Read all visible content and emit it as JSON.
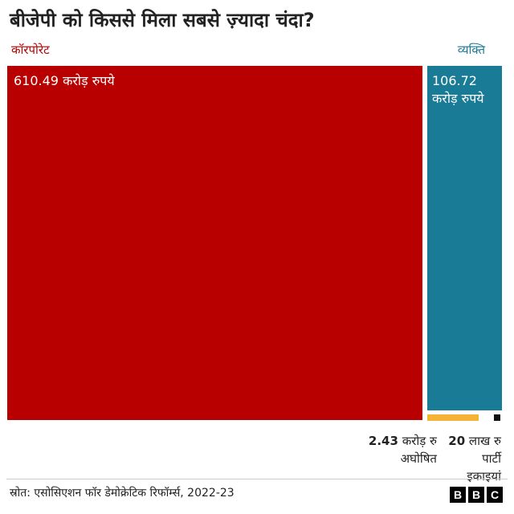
{
  "title": "बीजेपी को किससे मिला सबसे ज़्यादा चंदा?",
  "categories": {
    "corporate": "कॉरपोरेट",
    "individual": "व्यक्ति"
  },
  "labels": {
    "corporate_value": "610.49 करोड़ रुपये",
    "individual_value_line1": "106.72",
    "individual_value_line2": "करोड़ रुपये",
    "anon_value": "2.43",
    "anon_unit": " करोड़ रु",
    "anon_name": "अघोषित",
    "party_value": "20",
    "party_unit": " लाख रु",
    "party_name_line1": "पार्टी",
    "party_name_line2": "इकाइयां"
  },
  "source": "स्रोत: एसोसिएशन फॉर डेमोक्रेटिक रिफॉर्म्स, 2022-23",
  "logo": [
    "B",
    "B",
    "C"
  ],
  "colors": {
    "corporate": "#b80000",
    "individual": "#1a7b96",
    "anonymous": "#f5b335",
    "party": "#111111",
    "corporate_text": "#b80000",
    "individual_text": "#1a7b96"
  },
  "chart_data": {
    "type": "treemap",
    "title": "बीजेपी को किससे मिला सबसे ज़्यादा चंदा?",
    "unit": "करोड़ रुपये",
    "series": [
      {
        "name": "कॉरपोरेट",
        "value": 610.49
      },
      {
        "name": "व्यक्ति",
        "value": 106.72
      },
      {
        "name": "अघोषित",
        "value": 2.43
      },
      {
        "name": "पार्टी इकाइयां",
        "value": 0.2
      }
    ]
  }
}
